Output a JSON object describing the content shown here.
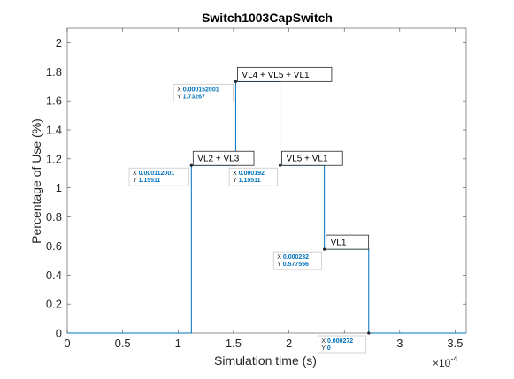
{
  "chart_data": {
    "type": "line",
    "title": "Switch1003CapSwitch",
    "xlabel": "Simulation time (s)",
    "ylabel": "Percentage of Use (%)",
    "x_exponent_label": "×10",
    "x_exponent_power": "-4",
    "xlim": [
      0,
      3.6
    ],
    "ylim": [
      0,
      2.1
    ],
    "x_ticks": [
      0,
      0.5,
      1,
      1.5,
      2,
      2.5,
      3,
      3.5
    ],
    "x_tick_labels": [
      "0",
      "0.5",
      "1",
      "1.5",
      "2",
      "2.5",
      "3",
      "3.5"
    ],
    "y_ticks": [
      0,
      0.2,
      0.4,
      0.6,
      0.8,
      1,
      1.2,
      1.4,
      1.6,
      1.8,
      2
    ],
    "y_tick_labels": [
      "0",
      "0.2",
      "0.4",
      "0.6",
      "0.8",
      "1",
      "1.2",
      "1.4",
      "1.6",
      "1.8",
      "2"
    ],
    "grid": false,
    "line_color": "#0072BD",
    "series": [
      {
        "x": [
          0,
          1.12001,
          1.12001,
          1.52001,
          1.52001,
          1.92,
          1.92,
          2.32,
          2.32,
          2.72,
          2.72,
          3.6
        ],
        "y": [
          0,
          0,
          1.15511,
          1.15511,
          1.73267,
          1.73267,
          1.15511,
          1.15511,
          0.577556,
          0.577556,
          0,
          0
        ]
      }
    ],
    "datatips": [
      {
        "x_text": "0.000112001",
        "y_text": "1.15511",
        "x": 1.12001,
        "y": 1.15511
      },
      {
        "x_text": "0.000152001",
        "y_text": "1.73267",
        "x": 1.52001,
        "y": 1.73267
      },
      {
        "x_text": "0.000192",
        "y_text": "1.15511",
        "x": 1.92,
        "y": 1.15511
      },
      {
        "x_text": "0.000232",
        "y_text": "0.577556",
        "x": 2.32,
        "y": 0.577556
      },
      {
        "x_text": "0.000272",
        "y_text": "0",
        "x": 2.72,
        "y": 0
      }
    ],
    "annotations": [
      {
        "text": "VL2 + VL3",
        "x": 1.12001,
        "y": 1.15511
      },
      {
        "text": "VL4 + VL5 + VL1",
        "x": 1.52001,
        "y": 1.73267
      },
      {
        "text": "VL5 + VL1",
        "x": 1.92,
        "y": 1.15511
      },
      {
        "text": "VL1",
        "x": 2.32,
        "y": 0.577556
      }
    ],
    "datatip_x_prefix": "X",
    "datatip_y_prefix": "Y"
  }
}
